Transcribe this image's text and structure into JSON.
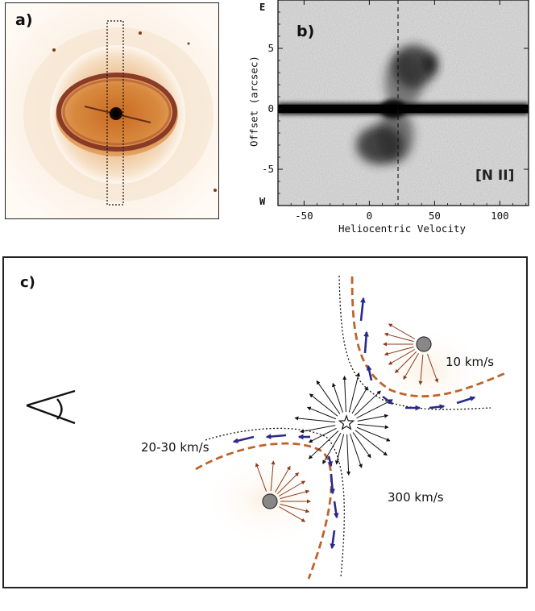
{
  "panel_a": {
    "label": "a)"
  },
  "panel_b": {
    "label": "b)",
    "east_label": "E",
    "west_label": "W",
    "line_label": "[N II]",
    "chart_data": {
      "type": "image-plot",
      "title": "",
      "xlabel": "Heliocentric Velocity",
      "ylabel": "Offset (arcsec)",
      "xticks": [
        "-50",
        "0",
        "50",
        "100"
      ],
      "xtick_values": [
        -50,
        0,
        50,
        100
      ],
      "yticks": [
        "5",
        "0",
        "-5"
      ],
      "ytick_values": [
        5,
        0,
        -5
      ],
      "xlim": [
        -70,
        122
      ],
      "ylim": [
        -8,
        9
      ],
      "systemic_velocity_line": 22
    }
  },
  "panel_c": {
    "label": "c)",
    "speed_outflow_knots": "10 km/s",
    "speed_flow_along_walls": "20-30 km/s",
    "speed_fast_wind": "300 km/s"
  }
}
